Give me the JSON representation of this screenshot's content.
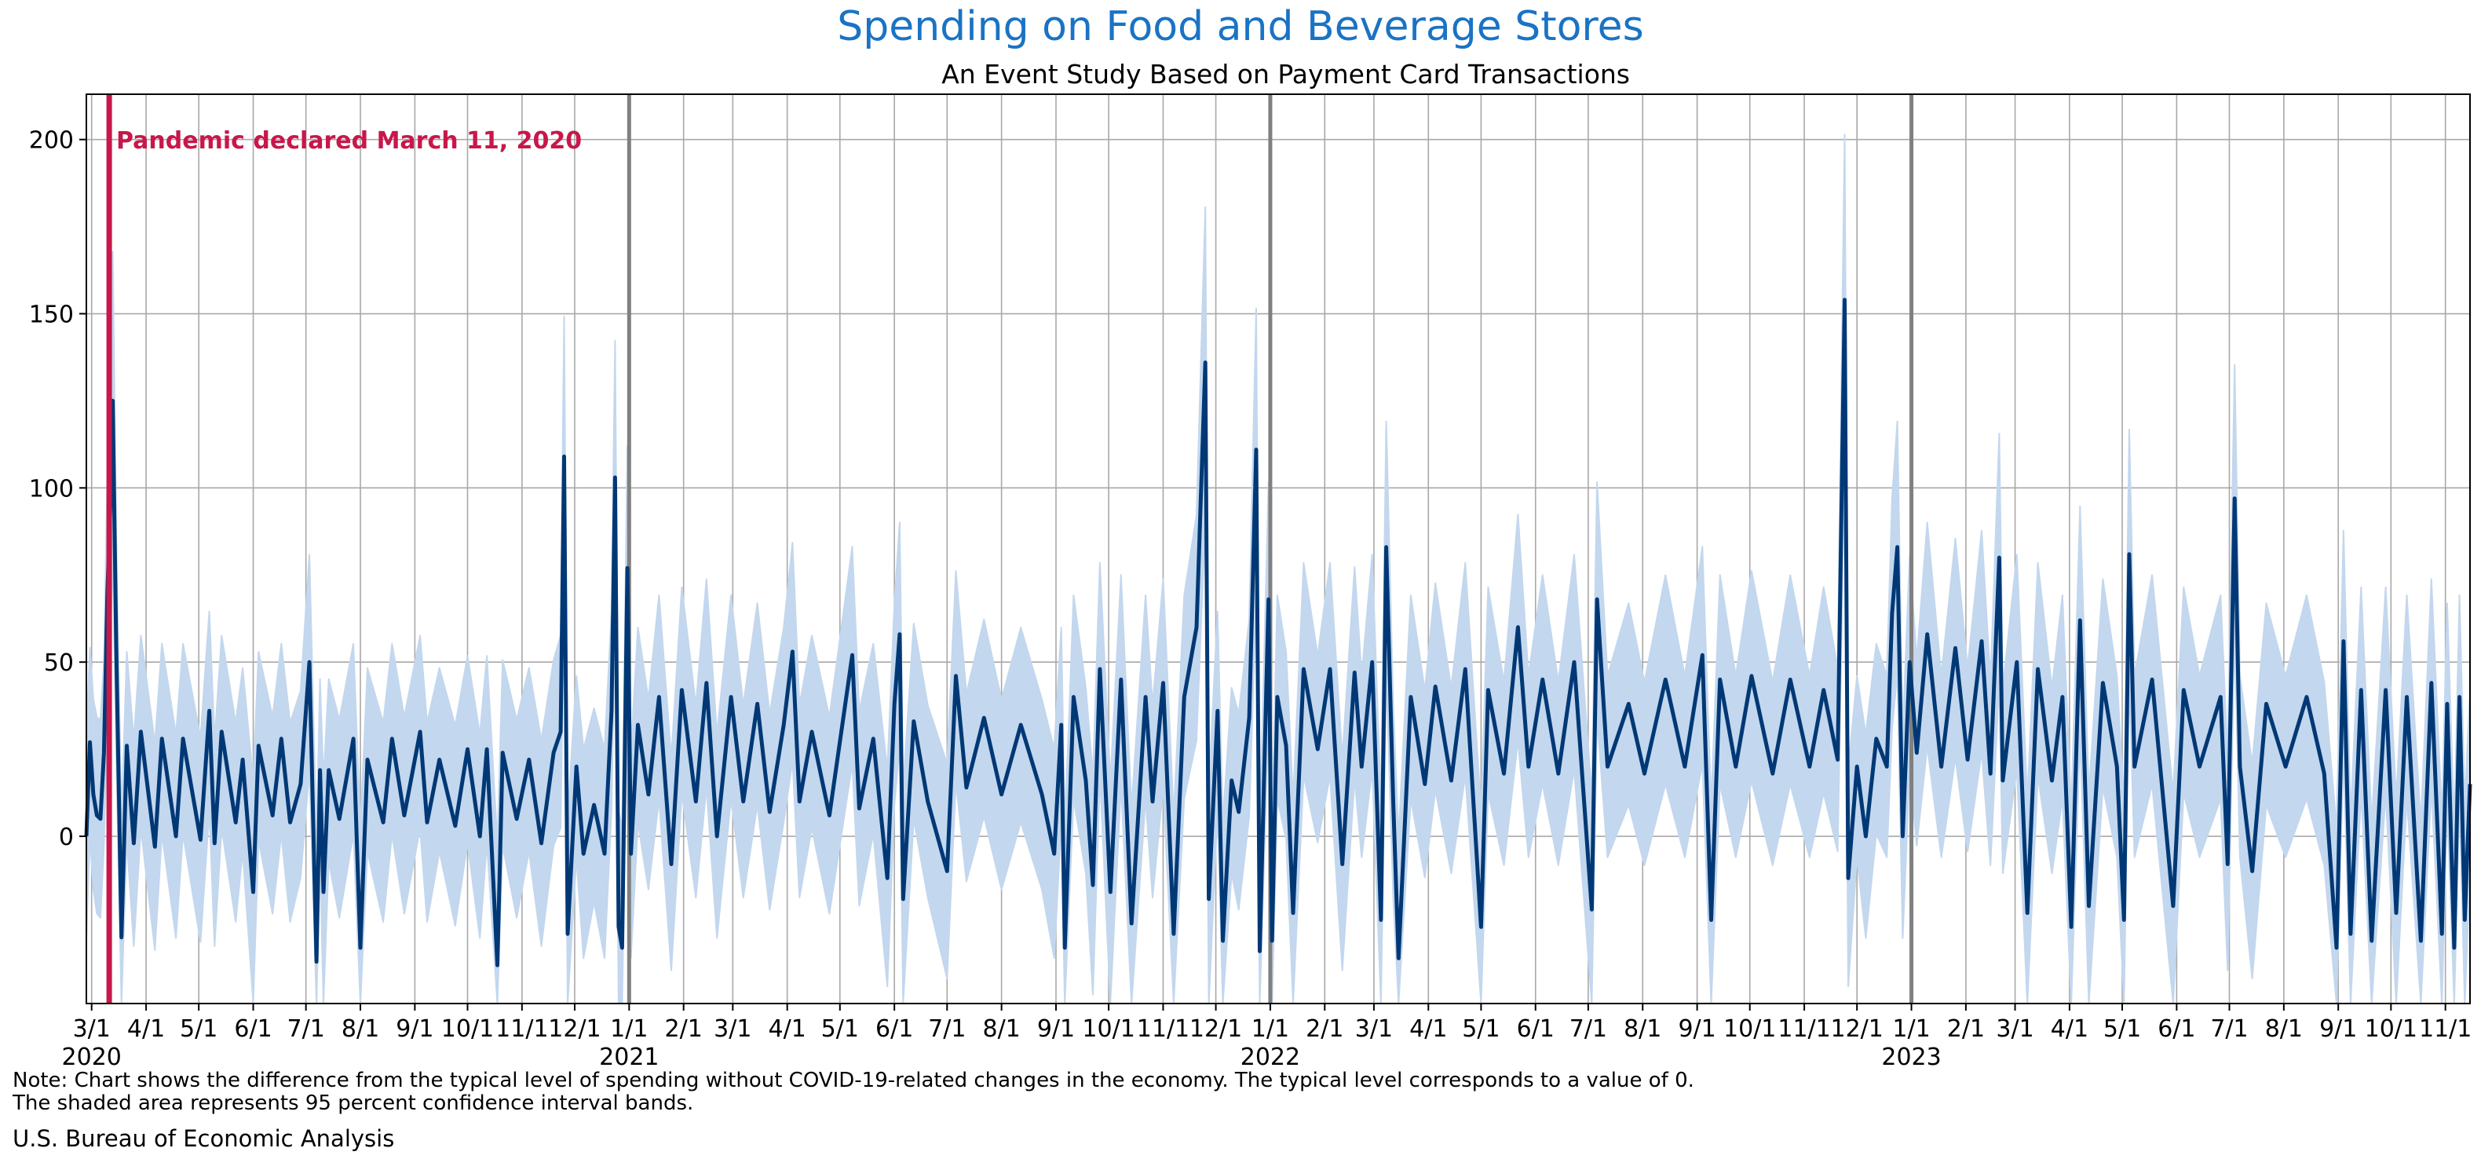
{
  "colors": {
    "title": "#1a73c4",
    "line": "#003875",
    "band": "#c3d7ee",
    "pandemic": "#c8174a",
    "grid": "#a8a8a8",
    "year_line": "#808080"
  },
  "chart_data": {
    "type": "line",
    "title": "Spending on Food and Beverage Stores",
    "subtitle": "An Event Study Based on Payment Card Transactions",
    "xlabel": "",
    "ylabel": "",
    "ylim": [
      -48,
      213
    ],
    "yticks": [
      0,
      50,
      100,
      150,
      200
    ],
    "x_range": [
      "2020-02-27",
      "2023-11-15"
    ],
    "grid": true,
    "x_ticks": [
      {
        "date": "2020-03-01",
        "label": "3/1",
        "year": "2020"
      },
      {
        "date": "2020-04-01",
        "label": "4/1"
      },
      {
        "date": "2020-05-01",
        "label": "5/1"
      },
      {
        "date": "2020-06-01",
        "label": "6/1"
      },
      {
        "date": "2020-07-01",
        "label": "7/1"
      },
      {
        "date": "2020-08-01",
        "label": "8/1"
      },
      {
        "date": "2020-09-01",
        "label": "9/1"
      },
      {
        "date": "2020-10-01",
        "label": "10/1"
      },
      {
        "date": "2020-11-01",
        "label": "11/1"
      },
      {
        "date": "2020-12-01",
        "label": "12/1"
      },
      {
        "date": "2021-01-01",
        "label": "1/1",
        "year": "2021"
      },
      {
        "date": "2021-02-01",
        "label": "2/1"
      },
      {
        "date": "2021-03-01",
        "label": "3/1"
      },
      {
        "date": "2021-04-01",
        "label": "4/1"
      },
      {
        "date": "2021-05-01",
        "label": "5/1"
      },
      {
        "date": "2021-06-01",
        "label": "6/1"
      },
      {
        "date": "2021-07-01",
        "label": "7/1"
      },
      {
        "date": "2021-08-01",
        "label": "8/1"
      },
      {
        "date": "2021-09-01",
        "label": "9/1"
      },
      {
        "date": "2021-10-01",
        "label": "10/1"
      },
      {
        "date": "2021-11-01",
        "label": "11/1"
      },
      {
        "date": "2021-12-01",
        "label": "12/1"
      },
      {
        "date": "2022-01-01",
        "label": "1/1",
        "year": "2022"
      },
      {
        "date": "2022-02-01",
        "label": "2/1"
      },
      {
        "date": "2022-03-01",
        "label": "3/1"
      },
      {
        "date": "2022-04-01",
        "label": "4/1"
      },
      {
        "date": "2022-05-01",
        "label": "5/1"
      },
      {
        "date": "2022-06-01",
        "label": "6/1"
      },
      {
        "date": "2022-07-01",
        "label": "7/1"
      },
      {
        "date": "2022-08-01",
        "label": "8/1"
      },
      {
        "date": "2022-09-01",
        "label": "9/1"
      },
      {
        "date": "2022-10-01",
        "label": "10/1"
      },
      {
        "date": "2022-11-01",
        "label": "11/1"
      },
      {
        "date": "2022-12-01",
        "label": "12/1"
      },
      {
        "date": "2023-01-01",
        "label": "1/1",
        "year": "2023"
      },
      {
        "date": "2023-02-01",
        "label": "2/1"
      },
      {
        "date": "2023-03-01",
        "label": "3/1"
      },
      {
        "date": "2023-04-01",
        "label": "4/1"
      },
      {
        "date": "2023-05-01",
        "label": "5/1"
      },
      {
        "date": "2023-06-01",
        "label": "6/1"
      },
      {
        "date": "2023-07-01",
        "label": "7/1"
      },
      {
        "date": "2023-08-01",
        "label": "8/1"
      },
      {
        "date": "2023-09-01",
        "label": "9/1"
      },
      {
        "date": "2023-10-01",
        "label": "10/1"
      },
      {
        "date": "2023-11-01",
        "label": "11/1"
      }
    ],
    "year_lines": [
      "2021-01-01",
      "2022-01-01",
      "2023-01-01"
    ],
    "event_line": {
      "date": "2020-03-11",
      "label": "Pandemic declared March 11, 2020"
    },
    "series_points": [
      [
        "2020-02-27",
        0
      ],
      [
        "2020-02-29",
        27
      ],
      [
        "2020-03-02",
        12
      ],
      [
        "2020-03-04",
        6
      ],
      [
        "2020-03-06",
        5
      ],
      [
        "2020-03-08",
        24
      ],
      [
        "2020-03-10",
        70
      ],
      [
        "2020-03-12",
        100
      ],
      [
        "2020-03-13",
        125
      ],
      [
        "2020-03-15",
        55
      ],
      [
        "2020-03-18",
        -29
      ],
      [
        "2020-03-21",
        26
      ],
      [
        "2020-03-25",
        -2
      ],
      [
        "2020-03-29",
        30
      ],
      [
        "2020-04-06",
        -3
      ],
      [
        "2020-04-10",
        28
      ],
      [
        "2020-04-18",
        0
      ],
      [
        "2020-04-22",
        28
      ],
      [
        "2020-05-02",
        -1
      ],
      [
        "2020-05-07",
        36
      ],
      [
        "2020-05-10",
        -2
      ],
      [
        "2020-05-14",
        30
      ],
      [
        "2020-05-22",
        4
      ],
      [
        "2020-05-26",
        22
      ],
      [
        "2020-06-01",
        -16
      ],
      [
        "2020-06-04",
        26
      ],
      [
        "2020-06-12",
        6
      ],
      [
        "2020-06-17",
        28
      ],
      [
        "2020-06-22",
        4
      ],
      [
        "2020-06-28",
        15
      ],
      [
        "2020-07-03",
        50
      ],
      [
        "2020-07-07",
        -36
      ],
      [
        "2020-07-09",
        19
      ],
      [
        "2020-07-11",
        -16
      ],
      [
        "2020-07-14",
        19
      ],
      [
        "2020-07-20",
        5
      ],
      [
        "2020-07-28",
        28
      ],
      [
        "2020-08-01",
        -32
      ],
      [
        "2020-08-05",
        22
      ],
      [
        "2020-08-14",
        4
      ],
      [
        "2020-08-19",
        28
      ],
      [
        "2020-08-26",
        6
      ],
      [
        "2020-09-04",
        30
      ],
      [
        "2020-09-08",
        4
      ],
      [
        "2020-09-15",
        22
      ],
      [
        "2020-09-24",
        3
      ],
      [
        "2020-10-01",
        25
      ],
      [
        "2020-10-08",
        0
      ],
      [
        "2020-10-12",
        25
      ],
      [
        "2020-10-18",
        -37
      ],
      [
        "2020-10-21",
        24
      ],
      [
        "2020-10-29",
        5
      ],
      [
        "2020-11-05",
        22
      ],
      [
        "2020-11-12",
        -2
      ],
      [
        "2020-11-19",
        24
      ],
      [
        "2020-11-23",
        30
      ],
      [
        "2020-11-25",
        109
      ],
      [
        "2020-11-27",
        -28
      ],
      [
        "2020-12-02",
        20
      ],
      [
        "2020-12-06",
        -5
      ],
      [
        "2020-12-12",
        9
      ],
      [
        "2020-12-18",
        -5
      ],
      [
        "2020-12-22",
        36
      ],
      [
        "2020-12-24",
        103
      ],
      [
        "2020-12-26",
        -26
      ],
      [
        "2020-12-28",
        -32
      ],
      [
        "2020-12-31",
        77
      ],
      [
        "2021-01-02",
        -5
      ],
      [
        "2021-01-06",
        32
      ],
      [
        "2021-01-12",
        12
      ],
      [
        "2021-01-18",
        40
      ],
      [
        "2021-01-25",
        -8
      ],
      [
        "2021-01-31",
        42
      ],
      [
        "2021-02-08",
        10
      ],
      [
        "2021-02-14",
        44
      ],
      [
        "2021-02-20",
        0
      ],
      [
        "2021-02-28",
        40
      ],
      [
        "2021-03-07",
        10
      ],
      [
        "2021-03-15",
        38
      ],
      [
        "2021-03-22",
        7
      ],
      [
        "2021-03-30",
        32
      ],
      [
        "2021-04-04",
        53
      ],
      [
        "2021-04-08",
        10
      ],
      [
        "2021-04-15",
        30
      ],
      [
        "2021-04-25",
        6
      ],
      [
        "2021-05-08",
        52
      ],
      [
        "2021-05-12",
        8
      ],
      [
        "2021-05-20",
        28
      ],
      [
        "2021-05-28",
        -12
      ],
      [
        "2021-06-01",
        38
      ],
      [
        "2021-06-04",
        58
      ],
      [
        "2021-06-06",
        -18
      ],
      [
        "2021-06-12",
        33
      ],
      [
        "2021-06-20",
        10
      ],
      [
        "2021-07-01",
        -10
      ],
      [
        "2021-07-06",
        46
      ],
      [
        "2021-07-12",
        14
      ],
      [
        "2021-07-22",
        34
      ],
      [
        "2021-08-01",
        12
      ],
      [
        "2021-08-12",
        32
      ],
      [
        "2021-08-24",
        12
      ],
      [
        "2021-08-31",
        -5
      ],
      [
        "2021-09-04",
        32
      ],
      [
        "2021-09-06",
        -32
      ],
      [
        "2021-09-11",
        40
      ],
      [
        "2021-09-18",
        16
      ],
      [
        "2021-09-22",
        -14
      ],
      [
        "2021-09-26",
        48
      ],
      [
        "2021-10-02",
        -16
      ],
      [
        "2021-10-08",
        45
      ],
      [
        "2021-10-14",
        -25
      ],
      [
        "2021-10-22",
        40
      ],
      [
        "2021-10-26",
        10
      ],
      [
        "2021-11-01",
        44
      ],
      [
        "2021-11-07",
        -28
      ],
      [
        "2021-11-13",
        40
      ],
      [
        "2021-11-20",
        60
      ],
      [
        "2021-11-25",
        136
      ],
      [
        "2021-11-27",
        -18
      ],
      [
        "2021-12-02",
        36
      ],
      [
        "2021-12-05",
        -30
      ],
      [
        "2021-12-10",
        16
      ],
      [
        "2021-12-14",
        7
      ],
      [
        "2021-12-20",
        34
      ],
      [
        "2021-12-24",
        111
      ],
      [
        "2021-12-26",
        -33
      ],
      [
        "2021-12-31",
        68
      ],
      [
        "2022-01-02",
        -30
      ],
      [
        "2022-01-05",
        40
      ],
      [
        "2022-01-10",
        26
      ],
      [
        "2022-01-14",
        -22
      ],
      [
        "2022-01-20",
        48
      ],
      [
        "2022-01-28",
        25
      ],
      [
        "2022-02-04",
        48
      ],
      [
        "2022-02-11",
        -8
      ],
      [
        "2022-02-18",
        47
      ],
      [
        "2022-02-22",
        20
      ],
      [
        "2022-02-28",
        50
      ],
      [
        "2022-03-05",
        -24
      ],
      [
        "2022-03-08",
        83
      ],
      [
        "2022-03-12",
        10
      ],
      [
        "2022-03-15",
        -35
      ],
      [
        "2022-03-22",
        40
      ],
      [
        "2022-03-30",
        15
      ],
      [
        "2022-04-05",
        43
      ],
      [
        "2022-04-14",
        16
      ],
      [
        "2022-04-22",
        48
      ],
      [
        "2022-05-01",
        -26
      ],
      [
        "2022-05-05",
        42
      ],
      [
        "2022-05-14",
        18
      ],
      [
        "2022-05-22",
        60
      ],
      [
        "2022-05-28",
        20
      ],
      [
        "2022-06-05",
        45
      ],
      [
        "2022-06-14",
        18
      ],
      [
        "2022-06-23",
        50
      ],
      [
        "2022-07-03",
        -21
      ],
      [
        "2022-07-06",
        68
      ],
      [
        "2022-07-12",
        20
      ],
      [
        "2022-07-24",
        38
      ],
      [
        "2022-08-02",
        18
      ],
      [
        "2022-08-14",
        45
      ],
      [
        "2022-08-25",
        20
      ],
      [
        "2022-09-04",
        52
      ],
      [
        "2022-09-09",
        -24
      ],
      [
        "2022-09-14",
        45
      ],
      [
        "2022-09-23",
        20
      ],
      [
        "2022-10-02",
        46
      ],
      [
        "2022-10-14",
        18
      ],
      [
        "2022-10-24",
        45
      ],
      [
        "2022-11-04",
        20
      ],
      [
        "2022-11-12",
        42
      ],
      [
        "2022-11-20",
        22
      ],
      [
        "2022-11-24",
        154
      ],
      [
        "2022-11-26",
        -12
      ],
      [
        "2022-12-01",
        20
      ],
      [
        "2022-12-06",
        0
      ],
      [
        "2022-12-12",
        28
      ],
      [
        "2022-12-18",
        20
      ],
      [
        "2022-12-21",
        64
      ],
      [
        "2022-12-24",
        83
      ],
      [
        "2022-12-27",
        0
      ],
      [
        "2022-12-31",
        50
      ],
      [
        "2023-01-04",
        24
      ],
      [
        "2023-01-10",
        58
      ],
      [
        "2023-01-18",
        20
      ],
      [
        "2023-01-26",
        54
      ],
      [
        "2023-02-02",
        22
      ],
      [
        "2023-02-10",
        56
      ],
      [
        "2023-02-15",
        18
      ],
      [
        "2023-02-20",
        80
      ],
      [
        "2023-02-22",
        16
      ],
      [
        "2023-03-02",
        50
      ],
      [
        "2023-03-08",
        -22
      ],
      [
        "2023-03-14",
        48
      ],
      [
        "2023-03-22",
        16
      ],
      [
        "2023-03-28",
        40
      ],
      [
        "2023-04-02",
        -26
      ],
      [
        "2023-04-07",
        62
      ],
      [
        "2023-04-12",
        -20
      ],
      [
        "2023-04-20",
        44
      ],
      [
        "2023-04-28",
        20
      ],
      [
        "2023-05-02",
        -24
      ],
      [
        "2023-05-05",
        81
      ],
      [
        "2023-05-08",
        20
      ],
      [
        "2023-05-18",
        45
      ],
      [
        "2023-05-30",
        -20
      ],
      [
        "2023-06-05",
        42
      ],
      [
        "2023-06-14",
        20
      ],
      [
        "2023-06-26",
        40
      ],
      [
        "2023-06-30",
        -8
      ],
      [
        "2023-07-04",
        97
      ],
      [
        "2023-07-07",
        20
      ],
      [
        "2023-07-14",
        -10
      ],
      [
        "2023-07-22",
        38
      ],
      [
        "2023-08-02",
        20
      ],
      [
        "2023-08-14",
        40
      ],
      [
        "2023-08-24",
        18
      ],
      [
        "2023-08-31",
        -32
      ],
      [
        "2023-09-04",
        56
      ],
      [
        "2023-09-08",
        -28
      ],
      [
        "2023-09-14",
        42
      ],
      [
        "2023-09-20",
        -30
      ],
      [
        "2023-09-28",
        42
      ],
      [
        "2023-10-04",
        -22
      ],
      [
        "2023-10-10",
        40
      ],
      [
        "2023-10-18",
        -30
      ],
      [
        "2023-10-24",
        44
      ],
      [
        "2023-10-30",
        -28
      ],
      [
        "2023-11-02",
        38
      ],
      [
        "2023-11-06",
        -32
      ],
      [
        "2023-11-09",
        40
      ],
      [
        "2023-11-12",
        -24
      ],
      [
        "2023-11-15",
        15
      ]
    ]
  },
  "note_line1": "Note: Chart shows the difference from the typical level of spending without COVID-19-related changes in the economy. The typical level corresponds to a value of 0.",
  "note_line2": "The shaded area represents 95 percent confidence interval bands.",
  "source": "U.S. Bureau of Economic Analysis"
}
